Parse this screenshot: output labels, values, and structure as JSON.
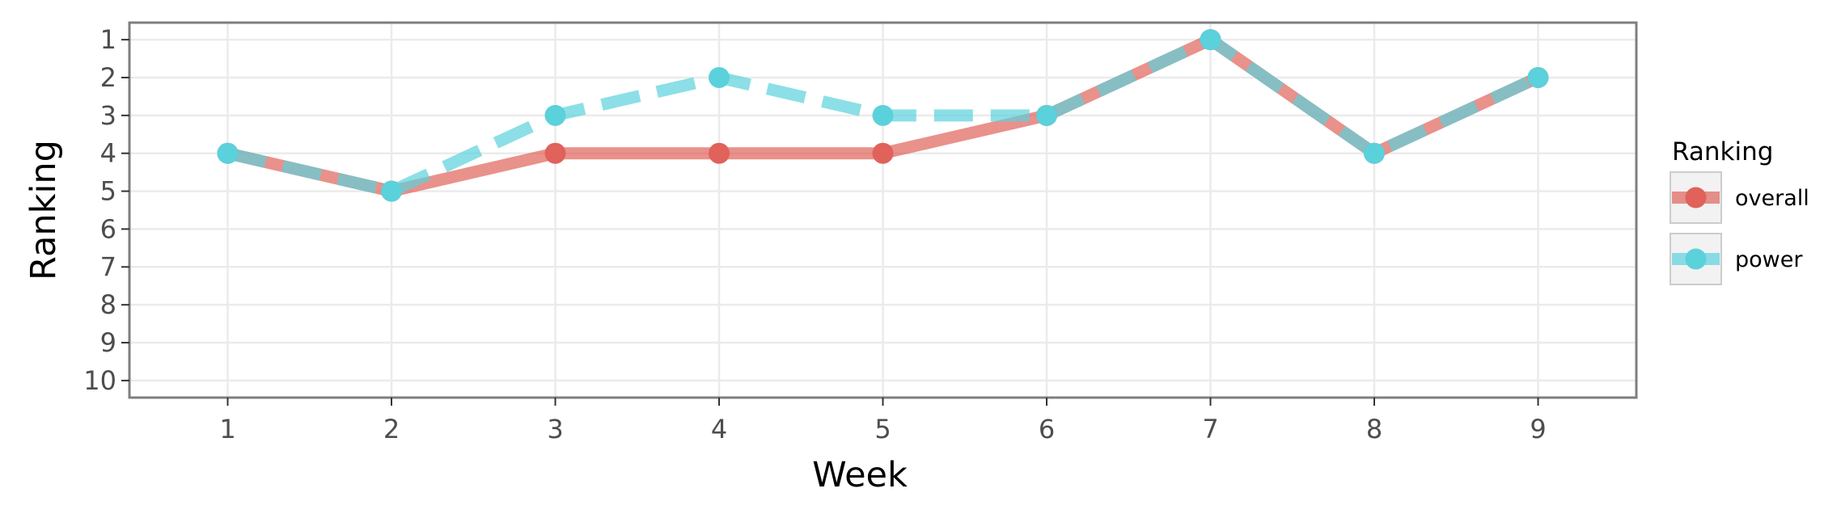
{
  "chart_data": {
    "type": "line",
    "xlabel": "Week",
    "ylabel": "Ranking",
    "x": [
      1,
      2,
      3,
      4,
      5,
      6,
      7,
      8,
      9
    ],
    "x_ticks": [
      "1",
      "2",
      "3",
      "4",
      "5",
      "6",
      "7",
      "8",
      "9"
    ],
    "y_ticks": [
      "1",
      "2",
      "3",
      "4",
      "5",
      "6",
      "7",
      "8",
      "9",
      "10"
    ],
    "xlim": [
      0.4,
      9.6
    ],
    "ylim": [
      10.45,
      0.55
    ],
    "y_reversed": true,
    "grid": true,
    "legend_title": "Ranking",
    "legend_position": "right",
    "series": [
      {
        "name": "overall",
        "values": [
          4,
          5,
          4,
          4,
          4,
          3,
          1,
          4,
          2
        ],
        "color": "#e0625a",
        "line_style": "solid"
      },
      {
        "name": "power",
        "values": [
          4,
          5,
          3,
          2,
          3,
          3,
          1,
          4,
          2
        ],
        "color": "#5bd1dc",
        "line_style": "dashed"
      }
    ]
  }
}
